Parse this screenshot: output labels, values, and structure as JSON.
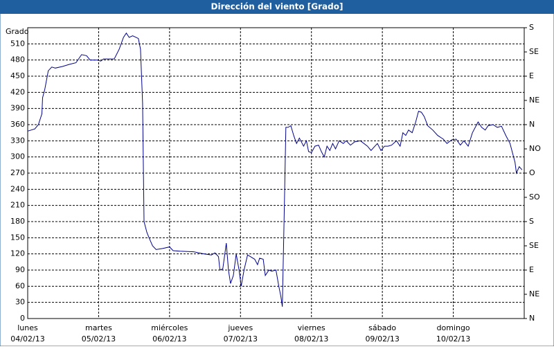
{
  "chart_data": {
    "type": "line",
    "title": "Dirección del viento [Grado]",
    "y_label": "Grado",
    "x": [
      0,
      0.1,
      0.15,
      0.2,
      0.21,
      0.24,
      0.29,
      0.34,
      0.39,
      0.49,
      0.59,
      0.68,
      0.76,
      0.83,
      0.88,
      0.98,
      1.03,
      1.07,
      1.22,
      1.29,
      1.35,
      1.39,
      1.43,
      1.48,
      1.56,
      1.59,
      1.62,
      1.64,
      1.68,
      1.71,
      1.76,
      1.81,
      1.9,
      2.0,
      2.05,
      2.15,
      2.34,
      2.49,
      2.59,
      2.64,
      2.69,
      2.71,
      2.75,
      2.8,
      2.83,
      2.86,
      2.9,
      2.94,
      2.98,
      3.01,
      3.05,
      3.1,
      3.14,
      3.2,
      3.24,
      3.27,
      3.32,
      3.35,
      3.4,
      3.44,
      3.5,
      3.54,
      3.57,
      3.59,
      3.62,
      3.64,
      3.67,
      3.71,
      3.75,
      3.79,
      3.83,
      3.89,
      3.93,
      3.96,
      4.0,
      4.05,
      4.1,
      4.14,
      4.18,
      4.22,
      4.26,
      4.3,
      4.34,
      4.39,
      4.45,
      4.49,
      4.55,
      4.61,
      4.69,
      4.79,
      4.84,
      4.88,
      4.93,
      4.98,
      5.03,
      5.08,
      5.13,
      5.2,
      5.25,
      5.29,
      5.33,
      5.37,
      5.42,
      5.47,
      5.51,
      5.55,
      5.59,
      5.64,
      5.71,
      5.78,
      5.86,
      5.91,
      5.98,
      6.04,
      6.1,
      6.15,
      6.21,
      6.27,
      6.35,
      6.4,
      6.45,
      6.49,
      6.56,
      6.62,
      6.68,
      6.74,
      6.8,
      6.84,
      6.87,
      6.89,
      6.93,
      6.97
    ],
    "values": [
      348,
      352,
      360,
      380,
      410,
      425,
      460,
      467,
      465,
      468,
      472,
      475,
      490,
      488,
      480,
      480,
      478,
      482,
      482,
      500,
      522,
      530,
      522,
      525,
      520,
      500,
      400,
      180,
      160,
      150,
      135,
      128,
      130,
      133,
      126,
      125,
      124,
      120,
      118,
      122,
      115,
      90,
      92,
      140,
      90,
      65,
      80,
      120,
      90,
      60,
      90,
      118,
      115,
      110,
      100,
      112,
      110,
      80,
      90,
      88,
      90,
      60,
      40,
      22,
      220,
      355,
      355,
      358,
      340,
      325,
      335,
      320,
      330,
      310,
      308,
      320,
      322,
      310,
      300,
      320,
      312,
      325,
      315,
      330,
      325,
      330,
      322,
      328,
      330,
      320,
      312,
      318,
      325,
      312,
      320,
      320,
      322,
      330,
      320,
      345,
      340,
      350,
      345,
      365,
      385,
      383,
      375,
      358,
      350,
      340,
      333,
      325,
      332,
      333,
      322,
      330,
      320,
      345,
      365,
      355,
      350,
      358,
      360,
      355,
      357,
      340,
      325,
      305,
      290,
      270,
      282,
      276
    ],
    "color": "#00008b",
    "xlim": [
      0,
      7
    ],
    "xticks": [
      {
        "value": 0,
        "label": "lunes"
      },
      {
        "value": 1,
        "label": "martes"
      },
      {
        "value": 2,
        "label": "miércoles"
      },
      {
        "value": 3,
        "label": "jueves"
      },
      {
        "value": 4,
        "label": "viernes"
      },
      {
        "value": 5,
        "label": "sábado"
      },
      {
        "value": 6,
        "label": "domingo"
      }
    ],
    "xtick_dates": [
      "04/02/13",
      "05/02/13",
      "06/02/13",
      "07/02/13",
      "08/02/13",
      "09/02/13",
      "10/02/13"
    ],
    "ylim": [
      0,
      540
    ],
    "yticks": [
      0,
      30,
      60,
      90,
      120,
      150,
      180,
      210,
      240,
      270,
      300,
      330,
      360,
      390,
      420,
      450,
      480,
      510
    ],
    "y2lim": [
      0,
      540
    ],
    "y2ticks": [
      {
        "value": 0,
        "label": "N"
      },
      {
        "value": 45,
        "label": "NE"
      },
      {
        "value": 90,
        "label": "E"
      },
      {
        "value": 135,
        "label": "SE"
      },
      {
        "value": 180,
        "label": "S"
      },
      {
        "value": 225,
        "label": "SO"
      },
      {
        "value": 270,
        "label": "O"
      },
      {
        "value": 315,
        "label": "NO"
      },
      {
        "value": 360,
        "label": "N"
      },
      {
        "value": 405,
        "label": "NE"
      },
      {
        "value": 450,
        "label": "E"
      },
      {
        "value": 495,
        "label": "SE"
      },
      {
        "value": 540,
        "label": "S"
      }
    ],
    "grid": true
  }
}
